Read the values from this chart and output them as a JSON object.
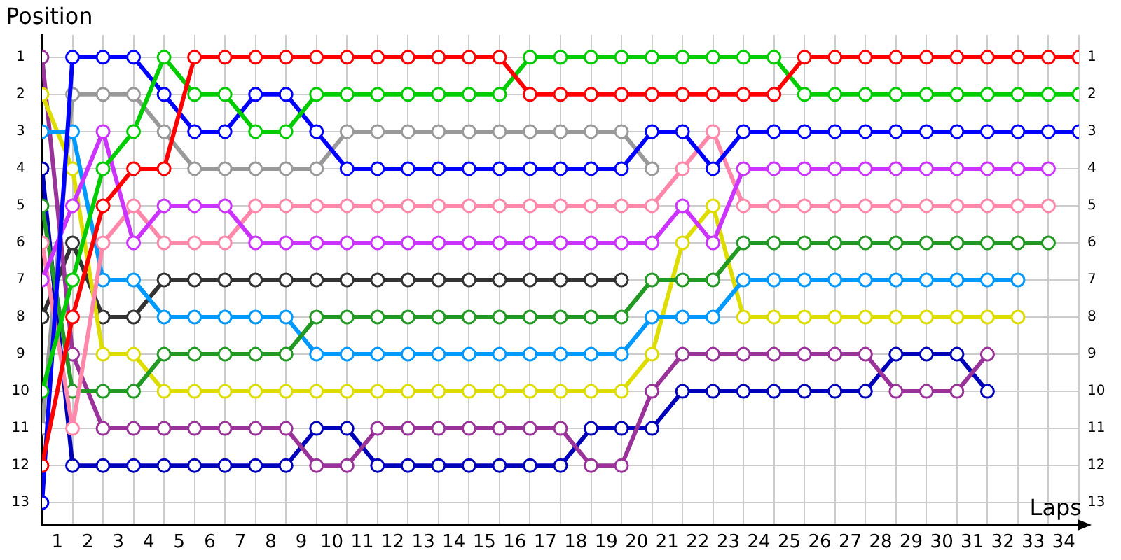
{
  "chart_data": {
    "type": "line",
    "xlabel": "Laps",
    "ylabel": "Position",
    "x": [
      0,
      1,
      2,
      3,
      4,
      5,
      6,
      7,
      8,
      9,
      10,
      11,
      12,
      13,
      14,
      15,
      16,
      17,
      18,
      19,
      20,
      21,
      22,
      23,
      24,
      25,
      26,
      27,
      28,
      29,
      30,
      31,
      32,
      33,
      34
    ],
    "series": [
      {
        "color": "#ff0000",
        "values": [
          12,
          8,
          5,
          4,
          4,
          1,
          1,
          1,
          1,
          1,
          1,
          1,
          1,
          1,
          1,
          1,
          2,
          2,
          2,
          2,
          2,
          2,
          2,
          2,
          2,
          1,
          1,
          1,
          1,
          1,
          1,
          1,
          1,
          1,
          1
        ]
      },
      {
        "color": "#00cc00",
        "values": [
          10,
          7,
          4,
          3,
          1,
          2,
          2,
          3,
          3,
          2,
          2,
          2,
          2,
          2,
          2,
          2,
          1,
          1,
          1,
          1,
          1,
          1,
          1,
          1,
          1,
          2,
          2,
          2,
          2,
          2,
          2,
          2,
          2,
          2,
          2
        ]
      },
      {
        "color": "#0000ff",
        "values": [
          13,
          1,
          1,
          1,
          2,
          3,
          3,
          2,
          2,
          3,
          4,
          4,
          4,
          4,
          4,
          4,
          4,
          4,
          4,
          4,
          3,
          3,
          4,
          3,
          3,
          3,
          3,
          3,
          3,
          3,
          3,
          3,
          3,
          3,
          3
        ]
      },
      {
        "color": "#cc33ff",
        "values": [
          7,
          5,
          3,
          6,
          5,
          5,
          5,
          6,
          6,
          6,
          6,
          6,
          6,
          6,
          6,
          6,
          6,
          6,
          6,
          6,
          6,
          5,
          6,
          4,
          4,
          4,
          4,
          4,
          4,
          4,
          4,
          4,
          4,
          4,
          null
        ]
      },
      {
        "color": "#ff88aa",
        "values": [
          6,
          11,
          6,
          5,
          6,
          6,
          6,
          5,
          5,
          5,
          5,
          5,
          5,
          5,
          5,
          5,
          5,
          5,
          5,
          5,
          5,
          4,
          3,
          5,
          5,
          5,
          5,
          5,
          5,
          5,
          5,
          5,
          5,
          5,
          null
        ]
      },
      {
        "color": "#229922",
        "values": [
          5,
          10,
          10,
          10,
          9,
          9,
          9,
          9,
          9,
          8,
          8,
          8,
          8,
          8,
          8,
          8,
          8,
          8,
          8,
          8,
          7,
          7,
          7,
          6,
          6,
          6,
          6,
          6,
          6,
          6,
          6,
          6,
          6,
          6,
          null
        ]
      },
      {
        "color": "#0099ff",
        "values": [
          3,
          3,
          7,
          7,
          8,
          8,
          8,
          8,
          8,
          9,
          9,
          9,
          9,
          9,
          9,
          9,
          9,
          9,
          9,
          9,
          8,
          8,
          8,
          7,
          7,
          7,
          7,
          7,
          7,
          7,
          7,
          7,
          7,
          null,
          null
        ]
      },
      {
        "color": "#dddd00",
        "values": [
          2,
          4,
          9,
          9,
          10,
          10,
          10,
          10,
          10,
          10,
          10,
          10,
          10,
          10,
          10,
          10,
          10,
          10,
          10,
          10,
          9,
          6,
          5,
          8,
          8,
          8,
          8,
          8,
          8,
          8,
          8,
          8,
          8,
          null,
          null
        ]
      },
      {
        "color": "#993399",
        "values": [
          1,
          9,
          11,
          11,
          11,
          11,
          11,
          11,
          11,
          12,
          12,
          11,
          11,
          11,
          11,
          11,
          11,
          11,
          12,
          12,
          10,
          9,
          9,
          9,
          9,
          9,
          9,
          9,
          10,
          10,
          10,
          9,
          null,
          null,
          null
        ]
      },
      {
        "color": "#0000bb",
        "values": [
          4,
          12,
          12,
          12,
          12,
          12,
          12,
          12,
          12,
          11,
          11,
          12,
          12,
          12,
          12,
          12,
          12,
          12,
          11,
          11,
          11,
          10,
          10,
          10,
          10,
          10,
          10,
          10,
          9,
          9,
          9,
          10,
          null,
          null,
          null
        ]
      },
      {
        "color": "#999999",
        "values": [
          11,
          2,
          2,
          2,
          3,
          4,
          4,
          4,
          4,
          4,
          3,
          3,
          3,
          3,
          3,
          3,
          3,
          3,
          3,
          3,
          4,
          null,
          null,
          null,
          null,
          null,
          null,
          null,
          null,
          null,
          null,
          null,
          null,
          null,
          null
        ]
      },
      {
        "color": "#333333",
        "values": [
          8,
          6,
          8,
          8,
          7,
          7,
          7,
          7,
          7,
          7,
          7,
          7,
          7,
          7,
          7,
          7,
          7,
          7,
          7,
          7,
          null,
          null,
          null,
          null,
          null,
          null,
          null,
          null,
          null,
          null,
          null,
          null,
          null,
          null,
          null
        ]
      }
    ],
    "xlim": [
      0,
      34
    ],
    "xticks": [
      {
        "value": 0,
        "label": null
      },
      {
        "value": 0.5,
        "label": "1"
      },
      {
        "value": 1,
        "label": null
      },
      {
        "value": 1.5,
        "label": "2"
      },
      {
        "value": 2,
        "label": null
      },
      {
        "value": 2.5,
        "label": "3"
      },
      {
        "value": 3,
        "label": null
      },
      {
        "value": 3.5,
        "label": "4"
      },
      {
        "value": 4,
        "label": null
      },
      {
        "value": 4.5,
        "label": "5"
      },
      {
        "value": 5,
        "label": null
      },
      {
        "value": 5.5,
        "label": "6"
      },
      {
        "value": 6,
        "label": null
      },
      {
        "value": 6.5,
        "label": "7"
      },
      {
        "value": 7,
        "label": null
      },
      {
        "value": 7.5,
        "label": "8"
      },
      {
        "value": 8,
        "label": null
      },
      {
        "value": 8.5,
        "label": "9"
      },
      {
        "value": 9,
        "label": null
      },
      {
        "value": 9.5,
        "label": "10"
      },
      {
        "value": 10,
        "label": null
      },
      {
        "value": 10.5,
        "label": "11"
      },
      {
        "value": 11,
        "label": null
      },
      {
        "value": 11.5,
        "label": "12"
      },
      {
        "value": 12,
        "label": null
      },
      {
        "value": 12.5,
        "label": "13"
      },
      {
        "value": 13,
        "label": null
      },
      {
        "value": 13.5,
        "label": "14"
      },
      {
        "value": 14,
        "label": null
      },
      {
        "value": 14.5,
        "label": "15"
      },
      {
        "value": 15,
        "label": null
      },
      {
        "value": 15.5,
        "label": "16"
      },
      {
        "value": 16,
        "label": null
      },
      {
        "value": 16.5,
        "label": "17"
      },
      {
        "value": 17,
        "label": null
      },
      {
        "value": 17.5,
        "label": "18"
      },
      {
        "value": 18,
        "label": null
      },
      {
        "value": 18.5,
        "label": "19"
      },
      {
        "value": 19,
        "label": null
      },
      {
        "value": 19.5,
        "label": "20"
      },
      {
        "value": 20,
        "label": null
      },
      {
        "value": 20.5,
        "label": "21"
      },
      {
        "value": 21,
        "label": null
      },
      {
        "value": 21.5,
        "label": "22"
      },
      {
        "value": 22,
        "label": null
      },
      {
        "value": 22.5,
        "label": "23"
      },
      {
        "value": 23,
        "label": null
      },
      {
        "value": 23.5,
        "label": "24"
      },
      {
        "value": 24,
        "label": null
      },
      {
        "value": 24.5,
        "label": "25"
      },
      {
        "value": 25,
        "label": null
      },
      {
        "value": 25.5,
        "label": "26"
      },
      {
        "value": 26,
        "label": null
      },
      {
        "value": 26.5,
        "label": "27"
      },
      {
        "value": 27,
        "label": null
      },
      {
        "value": 27.5,
        "label": "28"
      },
      {
        "value": 28,
        "label": null
      },
      {
        "value": 28.5,
        "label": "29"
      },
      {
        "value": 29,
        "label": null
      },
      {
        "value": 29.5,
        "label": "30"
      },
      {
        "value": 30,
        "label": null
      },
      {
        "value": 30.5,
        "label": "31"
      },
      {
        "value": 31,
        "label": null
      },
      {
        "value": 31.5,
        "label": "32"
      },
      {
        "value": 32,
        "label": null
      },
      {
        "value": 32.5,
        "label": "33"
      },
      {
        "value": 33,
        "label": null
      },
      {
        "value": 33.5,
        "label": "34"
      },
      {
        "value": 34,
        "label": null
      }
    ],
    "ylim": [
      13.6,
      0.4
    ],
    "yticks": [
      1,
      2,
      3,
      4,
      5,
      6,
      7,
      8,
      9,
      10,
      11,
      12,
      13
    ],
    "y2lim": [
      13.6,
      0.4
    ],
    "y2ticks": [
      1,
      2,
      3,
      4,
      5,
      6,
      7,
      8,
      9,
      10,
      11,
      12,
      13
    ],
    "grid": true,
    "marker": "circle"
  }
}
